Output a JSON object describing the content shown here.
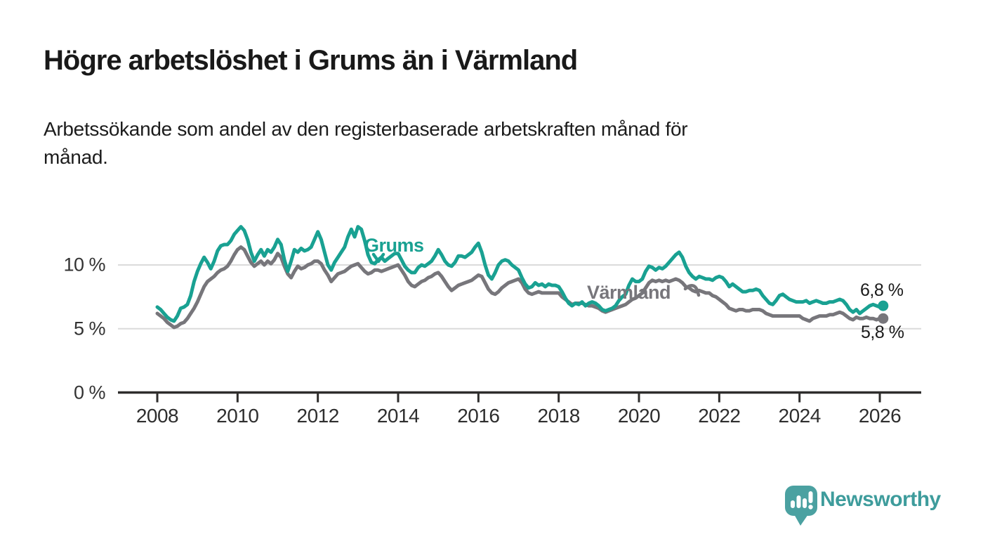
{
  "header": {
    "title": "Högre arbetslöshet i Grums än i Värmland",
    "subtitle": "Arbetssökande som andel av den registerbaserade arbetskraften månad för\nmånad."
  },
  "colors": {
    "grums_line": "#19A192",
    "varmland_line": "#77767B",
    "gridline": "#DBDBDB",
    "axis": "#2E2D2C",
    "text_dark": "#1A1A1A",
    "logo_bubble": "#4BA1A1",
    "brand_text": "#3E9C9C"
  },
  "annotations": {
    "grums_label": "Grums",
    "varmland_label": "Värmland",
    "grums_end_label": "6,8 %",
    "varmland_end_label": "5,8 %"
  },
  "branding": {
    "name": "Newsworthy"
  },
  "chart_data": {
    "type": "line",
    "title": "Högre arbetslöshet i Grums än i Värmland",
    "subtitle": "Arbetssökande som andel av den registerbaserade arbetskraften månad för månad.",
    "unit": "%",
    "x_monthly_start": "2008-01",
    "x_monthly_end": "2026-02",
    "x_tick_years": [
      2008,
      2010,
      2012,
      2014,
      2016,
      2018,
      2020,
      2022,
      2024,
      2026
    ],
    "y_ticks": [
      {
        "value": 0,
        "label": "0 %"
      },
      {
        "value": 5,
        "label": "5 %"
      },
      {
        "value": 10,
        "label": "10 %"
      }
    ],
    "ylim": [
      0,
      13.5
    ],
    "grid": true,
    "legend": "inline-labels",
    "series": [
      {
        "name": "Grums",
        "color": "#19A192",
        "end_label": "6,8 %",
        "end_value": 6.8,
        "values": [
          6.7,
          6.5,
          6.2,
          5.9,
          5.7,
          5.6,
          6.0,
          6.6,
          6.7,
          6.9,
          7.6,
          8.7,
          9.5,
          10.1,
          10.6,
          10.2,
          9.7,
          10.3,
          11.1,
          11.5,
          11.6,
          11.6,
          11.9,
          12.4,
          12.7,
          13.0,
          12.7,
          12.0,
          11.0,
          10.3,
          10.8,
          11.2,
          10.7,
          11.2,
          11.0,
          11.4,
          12.0,
          11.6,
          10.4,
          9.5,
          10.3,
          11.2,
          11.0,
          11.3,
          11.1,
          11.2,
          11.4,
          12.0,
          12.6,
          12.0,
          11.0,
          10.0,
          9.6,
          10.2,
          10.6,
          11.0,
          11.4,
          12.2,
          12.8,
          12.2,
          13.0,
          12.8,
          11.9,
          10.8,
          10.2,
          10.1,
          10.4,
          10.6,
          10.3,
          10.5,
          10.7,
          10.9,
          10.9,
          10.4,
          9.9,
          9.6,
          9.4,
          9.4,
          9.8,
          10.0,
          9.9,
          10.1,
          10.3,
          10.7,
          11.2,
          10.8,
          10.3,
          10.0,
          9.9,
          10.2,
          10.7,
          10.7,
          10.6,
          10.8,
          11.0,
          11.4,
          11.7,
          11.0,
          10.0,
          9.2,
          8.9,
          9.4,
          10.0,
          10.3,
          10.4,
          10.3,
          10.0,
          9.8,
          9.6,
          9.0,
          8.5,
          8.2,
          8.3,
          8.6,
          8.4,
          8.5,
          8.3,
          8.5,
          8.4,
          8.4,
          8.3,
          7.9,
          7.4,
          7.0,
          6.8,
          7.0,
          6.9,
          7.1,
          6.8,
          7.0,
          7.1,
          7.0,
          6.8,
          6.5,
          6.4,
          6.5,
          6.6,
          6.8,
          7.2,
          7.5,
          7.7,
          8.4,
          8.9,
          8.7,
          8.7,
          8.9,
          9.5,
          9.9,
          9.8,
          9.6,
          9.8,
          9.7,
          9.9,
          10.2,
          10.5,
          10.8,
          11.0,
          10.6,
          9.9,
          9.4,
          9.1,
          8.9,
          9.1,
          9.0,
          8.9,
          8.9,
          8.8,
          9.0,
          9.1,
          9.0,
          8.7,
          8.3,
          8.5,
          8.3,
          8.1,
          7.9,
          7.9,
          8.0,
          8.0,
          8.1,
          8.0,
          7.6,
          7.3,
          7.0,
          6.9,
          7.2,
          7.6,
          7.7,
          7.5,
          7.3,
          7.2,
          7.1,
          7.1,
          7.1,
          7.2,
          7.0,
          7.1,
          7.2,
          7.1,
          7.0,
          7.0,
          7.1,
          7.1,
          7.2,
          7.3,
          7.2,
          6.9,
          6.5,
          6.3,
          6.5,
          6.2,
          6.4,
          6.6,
          6.8,
          6.9,
          6.8,
          6.7,
          6.8
        ]
      },
      {
        "name": "Värmland",
        "color": "#77767B",
        "end_label": "5,8 %",
        "end_value": 5.8,
        "values": [
          6.2,
          6.0,
          5.8,
          5.5,
          5.3,
          5.1,
          5.2,
          5.4,
          5.5,
          5.8,
          6.2,
          6.6,
          7.1,
          7.7,
          8.3,
          8.7,
          8.9,
          9.1,
          9.4,
          9.6,
          9.7,
          9.9,
          10.3,
          10.8,
          11.2,
          11.4,
          11.2,
          10.7,
          10.2,
          9.9,
          10.1,
          10.3,
          10.0,
          10.3,
          10.1,
          10.4,
          10.9,
          10.6,
          9.9,
          9.3,
          9.0,
          9.5,
          9.9,
          9.7,
          9.8,
          10.0,
          10.1,
          10.3,
          10.3,
          10.1,
          9.6,
          9.2,
          8.7,
          9.0,
          9.3,
          9.4,
          9.5,
          9.7,
          9.9,
          10.0,
          10.1,
          9.8,
          9.5,
          9.3,
          9.4,
          9.6,
          9.6,
          9.5,
          9.6,
          9.7,
          9.8,
          9.9,
          10.0,
          9.6,
          9.2,
          8.7,
          8.4,
          8.3,
          8.5,
          8.7,
          8.8,
          9.0,
          9.1,
          9.3,
          9.4,
          9.1,
          8.7,
          8.3,
          8.0,
          8.2,
          8.4,
          8.5,
          8.6,
          8.7,
          8.8,
          9.0,
          9.2,
          9.1,
          8.6,
          8.1,
          7.8,
          7.7,
          7.9,
          8.2,
          8.4,
          8.6,
          8.7,
          8.8,
          8.9,
          8.6,
          8.1,
          7.8,
          7.7,
          7.8,
          7.9,
          7.8,
          7.8,
          7.8,
          7.8,
          7.8,
          7.8,
          7.5,
          7.3,
          7.1,
          6.9,
          7.0,
          7.0,
          7.0,
          6.9,
          6.8,
          6.8,
          6.7,
          6.6,
          6.4,
          6.3,
          6.4,
          6.5,
          6.6,
          6.7,
          6.8,
          6.9,
          7.1,
          7.3,
          7.4,
          7.6,
          7.8,
          8.2,
          8.6,
          8.8,
          8.7,
          8.8,
          8.7,
          8.8,
          8.7,
          8.8,
          8.9,
          8.8,
          8.6,
          8.3,
          8.2,
          8.0,
          7.9,
          8.0,
          7.9,
          7.8,
          7.8,
          7.6,
          7.5,
          7.3,
          7.1,
          6.9,
          6.6,
          6.5,
          6.4,
          6.5,
          6.5,
          6.4,
          6.4,
          6.5,
          6.5,
          6.5,
          6.4,
          6.2,
          6.1,
          6.0,
          6.0,
          6.0,
          6.0,
          6.0,
          6.0,
          6.0,
          6.0,
          6.0,
          5.8,
          5.7,
          5.6,
          5.8,
          5.9,
          6.0,
          6.0,
          6.0,
          6.1,
          6.1,
          6.2,
          6.3,
          6.2,
          6.0,
          5.8,
          5.7,
          5.9,
          5.8,
          5.8,
          5.9,
          5.8,
          5.8,
          5.7,
          5.8,
          5.8
        ]
      }
    ]
  }
}
